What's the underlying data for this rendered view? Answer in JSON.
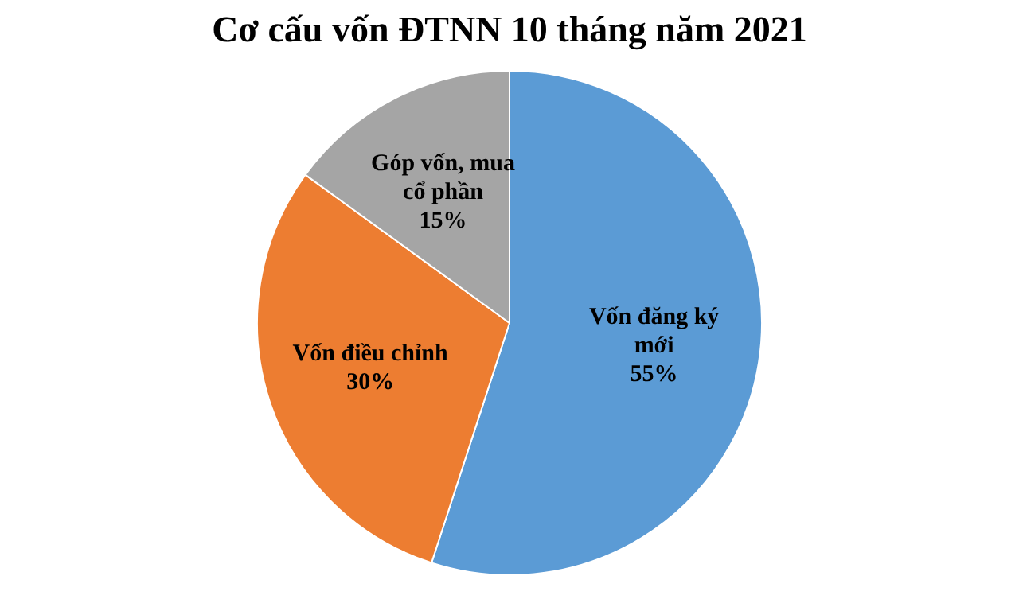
{
  "chart_data": {
    "type": "pie",
    "title": "Cơ cấu vốn ĐTNN 10 tháng năm 2021",
    "categories": [
      "Vốn đăng ký mới",
      "Vốn điều chỉnh",
      "Góp vốn, mua cổ phần"
    ],
    "values": [
      55,
      30,
      15
    ],
    "colors": [
      "#5b9bd5",
      "#ed7d31",
      "#a5a5a5"
    ],
    "value_labels": [
      "55%",
      "30%",
      "15%"
    ],
    "legend": false
  }
}
